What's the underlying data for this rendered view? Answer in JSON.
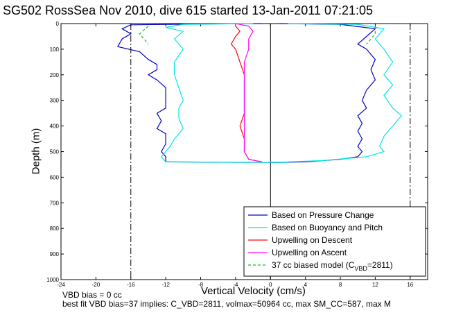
{
  "chart_data": {
    "type": "line",
    "title": "SG502 RossSea Nov 2010, dive 615 started 13-Jan-2011 07:21:05",
    "xlabel": "Vertical Velocity (cm/s)",
    "ylabel": "Depth (m)",
    "xlim": [
      -24,
      18
    ],
    "ylim": [
      1000,
      0
    ],
    "y_reversed": true,
    "grid": false,
    "legend_position": "bottom-right",
    "x_ticks": [
      -24,
      -20,
      -16,
      -12,
      -8,
      -4,
      0,
      4,
      8,
      12,
      16
    ],
    "y_ticks": [
      0,
      100,
      200,
      300,
      400,
      500,
      600,
      700,
      800,
      900,
      1000
    ],
    "reference_lines": [
      {
        "x": -16,
        "style": "dash-dot"
      },
      {
        "x": 0,
        "style": "solid"
      },
      {
        "x": 16,
        "style": "dash-dot"
      }
    ],
    "series": [
      {
        "name": "Based on Pressure Change",
        "color": "#0000cc",
        "branches": [
          {
            "points": [
              [
                -1,
                0
              ],
              [
                -8,
                2
              ],
              [
                -16,
                5
              ],
              [
                -17,
                20
              ],
              [
                -16,
                40
              ],
              [
                -17,
                60
              ],
              [
                -17.5,
                90
              ],
              [
                -15,
                110
              ],
              [
                -14,
                140
              ],
              [
                -13,
                160
              ],
              [
                -13,
                180
              ],
              [
                -14,
                200
              ],
              [
                -13,
                220
              ],
              [
                -12,
                250
              ],
              [
                -12,
                280
              ],
              [
                -12,
                300
              ],
              [
                -12,
                330
              ],
              [
                -13,
                350
              ],
              [
                -12.5,
                380
              ],
              [
                -13,
                410
              ],
              [
                -12,
                430
              ],
              [
                -12,
                450
              ],
              [
                -12,
                470
              ],
              [
                -12.5,
                500
              ],
              [
                -12,
                520
              ],
              [
                -12,
                540
              ],
              [
                -4,
                542
              ],
              [
                2,
                542
              ]
            ]
          },
          {
            "points": [
              [
                1,
                0
              ],
              [
                8,
                3
              ],
              [
                12,
                20
              ],
              [
                11,
                50
              ],
              [
                10,
                80
              ],
              [
                11,
                100
              ],
              [
                12,
                140
              ],
              [
                11.5,
                180
              ],
              [
                12,
                220
              ],
              [
                11,
                260
              ],
              [
                10.5,
                300
              ],
              [
                11,
                330
              ],
              [
                10,
                360
              ],
              [
                10.5,
                390
              ],
              [
                10,
                420
              ],
              [
                10.5,
                450
              ],
              [
                10,
                480
              ],
              [
                10.5,
                500
              ],
              [
                10,
                520
              ],
              [
                8,
                530
              ],
              [
                4,
                540
              ],
              [
                0,
                543
              ]
            ]
          }
        ]
      },
      {
        "name": "Based on Buoyancy and Pitch",
        "color": "#00e5e5",
        "branches": [
          {
            "points": [
              [
                -2,
                0
              ],
              [
                -10,
                3
              ],
              [
                -12,
                15
              ],
              [
                -10,
                30
              ],
              [
                -11,
                60
              ],
              [
                -10,
                100
              ],
              [
                -11,
                150
              ],
              [
                -11,
                200
              ],
              [
                -10.5,
                250
              ],
              [
                -10,
                300
              ],
              [
                -10.5,
                330
              ],
              [
                -10.5,
                370
              ],
              [
                -10,
                410
              ],
              [
                -11,
                450
              ],
              [
                -11.5,
                480
              ],
              [
                -12,
                500
              ],
              [
                -12.5,
                520
              ],
              [
                -12,
                540
              ],
              [
                -4,
                542
              ],
              [
                2,
                542
              ]
            ]
          },
          {
            "points": [
              [
                2,
                0
              ],
              [
                10,
                3
              ],
              [
                13,
                20
              ],
              [
                12,
                60
              ],
              [
                13,
                100
              ],
              [
                14,
                150
              ],
              [
                13,
                200
              ],
              [
                14,
                240
              ],
              [
                13,
                280
              ],
              [
                14,
                330
              ],
              [
                15,
                360
              ],
              [
                14,
                400
              ],
              [
                13,
                440
              ],
              [
                12.5,
                480
              ],
              [
                13,
                500
              ],
              [
                11,
                520
              ],
              [
                6,
                535
              ],
              [
                0,
                543
              ]
            ]
          }
        ]
      },
      {
        "name": "Upwelling on Descent",
        "color": "#ff0000",
        "branches": [
          {
            "points": [
              [
                -4,
                0
              ],
              [
                -4,
                10
              ],
              [
                -3.5,
                30
              ],
              [
                -4,
                50
              ],
              [
                -4.5,
                80
              ],
              [
                -4,
                100
              ],
              [
                -3.5,
                150
              ],
              [
                -3,
                200
              ],
              [
                -3,
                250
              ],
              [
                -3,
                300
              ],
              [
                -3,
                350
              ],
              [
                -3.5,
                400
              ],
              [
                -3,
                450
              ],
              [
                -3,
                500
              ],
              [
                -2.5,
                530
              ],
              [
                -1,
                540
              ]
            ]
          }
        ]
      },
      {
        "name": "Upwelling on Ascent",
        "color": "#ff00ff",
        "branches": [
          {
            "points": [
              [
                -4,
                0
              ],
              [
                -2.5,
                10
              ],
              [
                -2,
                30
              ],
              [
                -2.5,
                60
              ],
              [
                -2.5,
                100
              ],
              [
                -3,
                150
              ],
              [
                -3,
                200
              ],
              [
                -3,
                250
              ],
              [
                -3,
                300
              ],
              [
                -3,
                350
              ],
              [
                -3,
                400
              ],
              [
                -3,
                450
              ],
              [
                -3,
                500
              ],
              [
                -2.5,
                530
              ],
              [
                -1,
                540
              ]
            ]
          }
        ]
      },
      {
        "name": "37 cc biased model (C_VBD=2811)",
        "color": "#00cc00",
        "dash": true,
        "branches": [
          {
            "points": [
              [
                -14,
                10
              ],
              [
                -15,
                40
              ],
              [
                -14,
                80
              ]
            ]
          },
          {
            "points": [
              [
                12,
                10
              ],
              [
                12,
                40
              ],
              [
                11,
                80
              ]
            ]
          }
        ]
      }
    ],
    "legend": [
      {
        "label": "Based on Pressure Change",
        "color": "#0000cc"
      },
      {
        "label": "Based on Buoyancy and Pitch",
        "color": "#00e5e5"
      },
      {
        "label": "Upwelling on Descent",
        "color": "#ff0000"
      },
      {
        "label": "Upwelling on Ascent",
        "color": "#ff00ff"
      },
      {
        "label": "37 cc biased model (C",
        "color": "#00cc00",
        "dash": true,
        "sub": "VBD",
        "tail": "=2811)"
      }
    ]
  },
  "notes": {
    "line1": "VBD bias = 0 cc",
    "line2": "best fit VBD bias=37 implies: C_VBD=2811, volmax=50964 cc, max SM_CC=587, max M"
  }
}
